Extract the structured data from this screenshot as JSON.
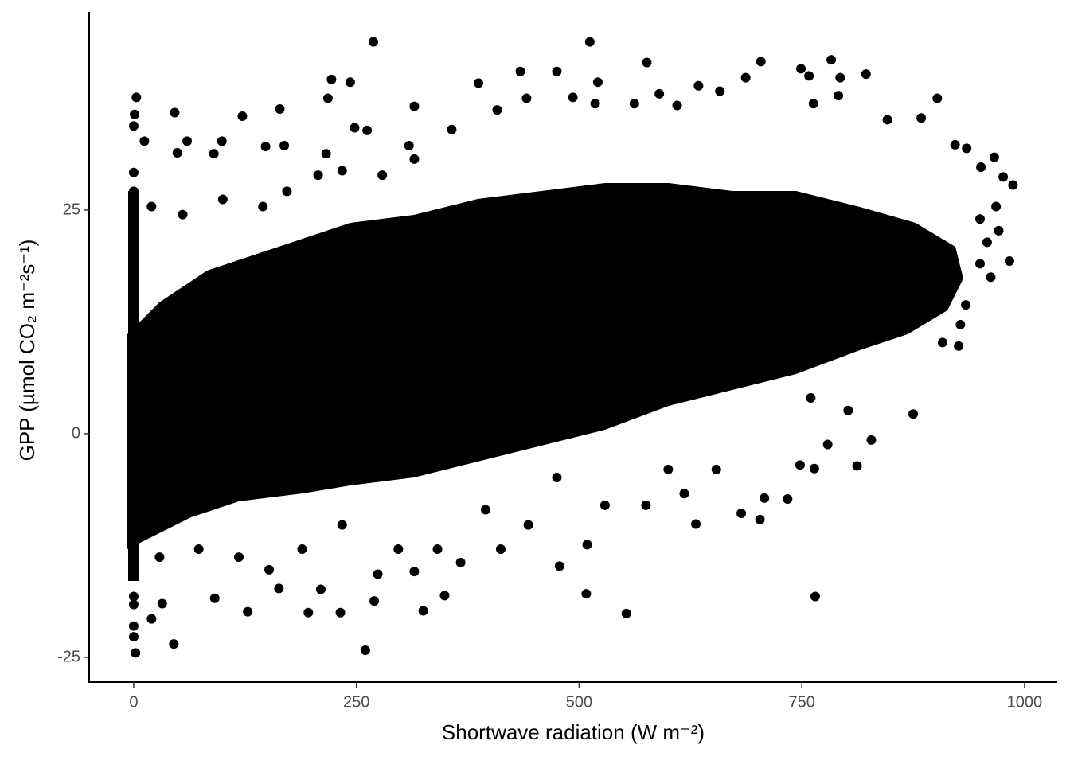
{
  "chart_data": {
    "type": "scatter",
    "x_label": "Shortwave radiation (W m⁻²)",
    "y_label": "GPP (µmol CO₂ m⁻²s⁻¹)",
    "xlim": [
      -50,
      1036.7
    ],
    "ylim": [
      -27.76,
      47.15
    ],
    "xticks": [
      0,
      250,
      500,
      750,
      1000
    ],
    "yticks": [
      -25,
      0,
      25
    ],
    "color": "#000000",
    "x": [
      269,
      512,
      576,
      704,
      783,
      222,
      243,
      475,
      521,
      434,
      387,
      822,
      793,
      749,
      758,
      687,
      658,
      634,
      902,
      218,
      3,
      46,
      122,
      164,
      315,
      966,
      987,
      976,
      983,
      962,
      934,
      926,
      875,
      828,
      812,
      765,
      553,
      508,
      478,
      509,
      631,
      260,
      2,
      45,
      20,
      32,
      91,
      128,
      196,
      232,
      325,
      349,
      270,
      163,
      210,
      152,
      274,
      315,
      367,
      412,
      443,
      764,
      708,
      748,
      760,
      802,
      682,
      734,
      703,
      779,
      928,
      908,
      1,
      0,
      0,
      0,
      0,
      0,
      0,
      0,
      0,
      0,
      0,
      0,
      0,
      12,
      60,
      49,
      90,
      99,
      148,
      169,
      216,
      248,
      262,
      309,
      357,
      441,
      408,
      493,
      518,
      562,
      590,
      610,
      763,
      791,
      846,
      884,
      922,
      935,
      951,
      968,
      971,
      958,
      20,
      55,
      100,
      145,
      172,
      207,
      234,
      279,
      315,
      395,
      475,
      529,
      575,
      600,
      654,
      618,
      341,
      297,
      234,
      189,
      118,
      73,
      29,
      50,
      50,
      50,
      150,
      150,
      150,
      250,
      250,
      250,
      350,
      350,
      350,
      450,
      450,
      450,
      550,
      550,
      550,
      650,
      650,
      650,
      750,
      750,
      750,
      850,
      850,
      850,
      950,
      950
    ],
    "values": [
      43.8,
      43.8,
      41.5,
      41.6,
      41.8,
      39.6,
      39.3,
      40.5,
      39.3,
      40.5,
      39.2,
      40.2,
      39.8,
      40.8,
      40,
      39.8,
      38.3,
      38.9,
      37.5,
      37.5,
      37.6,
      35.9,
      35.5,
      36.3,
      36.6,
      30.9,
      27.8,
      28.7,
      19.3,
      17.5,
      14.4,
      9.8,
      2.2,
      -0.7,
      -3.6,
      -18.2,
      -20.1,
      -17.9,
      -14.8,
      -12.4,
      -10.1,
      -24.2,
      -24.5,
      -23.5,
      -20.7,
      -19,
      -18.4,
      -19.9,
      -20,
      -20,
      -19.8,
      -18.1,
      -18.7,
      -17.3,
      -17.4,
      -15.2,
      -15.7,
      -15.4,
      -14.4,
      -12.9,
      -10.2,
      -3.9,
      -7.2,
      -3.5,
      4,
      2.6,
      -8.9,
      -7.3,
      -9.6,
      -1.2,
      12.2,
      10.2,
      35.7,
      34.4,
      29.2,
      27.1,
      25.4,
      -13.8,
      -15.6,
      -18.2,
      -19.1,
      -22.7,
      -21.5,
      20,
      15,
      32.7,
      32.7,
      31.4,
      31.3,
      32.7,
      32.1,
      32.2,
      31.3,
      34.2,
      33.9,
      32.2,
      34,
      37.5,
      36.2,
      37.6,
      36.9,
      36.9,
      38,
      36.7,
      36.9,
      37.8,
      35.1,
      35.3,
      32.3,
      31.9,
      29.8,
      25.4,
      22.7,
      21.4,
      25.4,
      24.5,
      26.2,
      25.4,
      27.1,
      28.9,
      29.4,
      28.9,
      30.7,
      -8.5,
      -4.9,
      -8,
      -8,
      -4,
      -4,
      -6.7,
      -12.9,
      -12.9,
      -10.2,
      -12.9,
      -13.8,
      -12.9,
      -13.8,
      3.9,
      9,
      -1,
      5.6,
      11,
      0.5,
      7.3,
      13,
      2,
      9,
      15,
      3.5,
      10.7,
      16,
      5,
      12.4,
      18,
      6,
      14,
      20,
      8,
      15.8,
      21,
      10,
      17.5,
      23,
      12,
      19,
      24
    ]
  }
}
